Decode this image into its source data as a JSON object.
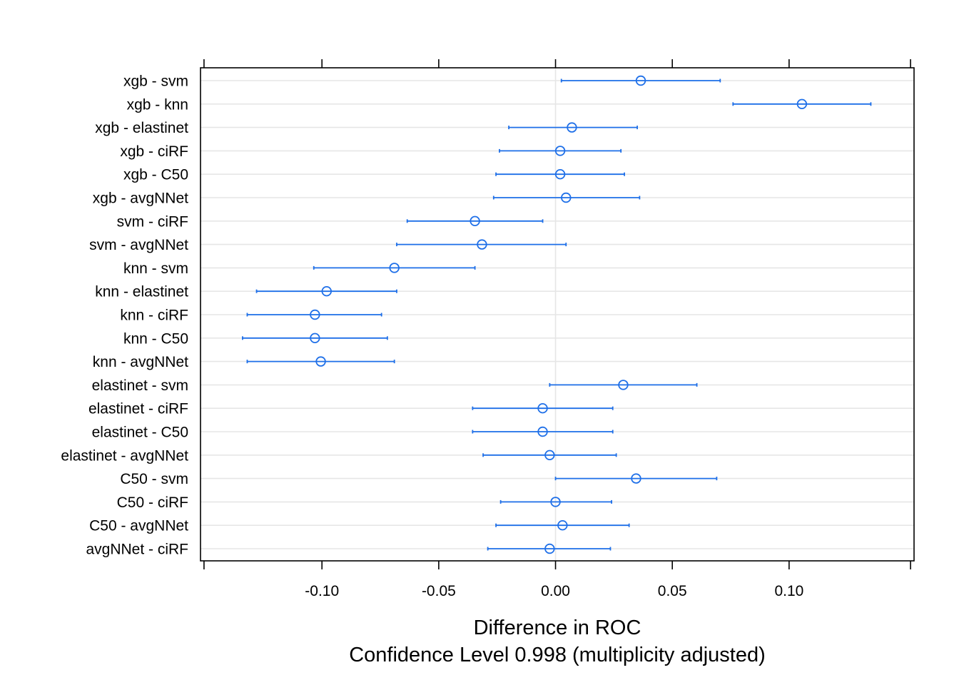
{
  "chart_data": {
    "type": "scatter",
    "xlabel": "Difference in ROC",
    "subtitle": "Confidence Level 0.998  (multiplicity adjusted)",
    "xlim": [
      -0.152,
      0.1535
    ],
    "xticks": [
      -0.1,
      -0.05,
      0.0,
      0.05,
      0.1
    ],
    "xtick_labels": [
      "-0.10",
      "-0.05",
      "0.00",
      "0.05",
      "0.10"
    ],
    "reference_line": 0.0,
    "grid": true,
    "color": "#1e6fe8",
    "points": [
      {
        "label": "xgb - svm",
        "estimate": 0.0365,
        "lower": 0.0025,
        "upper": 0.0705
      },
      {
        "label": "xgb - knn",
        "estimate": 0.1055,
        "upper": 0.135,
        "lower": 0.076
      },
      {
        "label": "xgb - elastinet",
        "estimate": 0.007,
        "lower": -0.02,
        "upper": 0.035
      },
      {
        "label": "xgb - ciRF",
        "estimate": 0.002,
        "lower": -0.024,
        "upper": 0.028
      },
      {
        "label": "xgb - C50",
        "estimate": 0.002,
        "lower": -0.0255,
        "upper": 0.0295
      },
      {
        "label": "xgb - avgNNet",
        "estimate": 0.0045,
        "lower": -0.0265,
        "upper": 0.036
      },
      {
        "label": "svm - ciRF",
        "estimate": -0.0345,
        "lower": -0.0635,
        "upper": -0.0055
      },
      {
        "label": "svm - avgNNet",
        "estimate": -0.0315,
        "lower": -0.068,
        "upper": 0.0045
      },
      {
        "label": "knn - svm",
        "estimate": -0.069,
        "lower": -0.1035,
        "upper": -0.0345
      },
      {
        "label": "knn - elastinet",
        "estimate": -0.098,
        "lower": -0.128,
        "upper": -0.068
      },
      {
        "label": "knn - ciRF",
        "estimate": -0.103,
        "lower": -0.132,
        "upper": -0.0745
      },
      {
        "label": "knn - C50",
        "estimate": -0.103,
        "lower": -0.134,
        "upper": -0.072
      },
      {
        "label": "knn - avgNNet",
        "estimate": -0.1005,
        "lower": -0.132,
        "upper": -0.069
      },
      {
        "label": "elastinet - svm",
        "estimate": 0.029,
        "lower": -0.0025,
        "upper": 0.0605
      },
      {
        "label": "elastinet - ciRF",
        "estimate": -0.0055,
        "lower": -0.0355,
        "upper": 0.0245
      },
      {
        "label": "elastinet - C50",
        "estimate": -0.0055,
        "lower": -0.0355,
        "upper": 0.0245
      },
      {
        "label": "elastinet - avgNNet",
        "estimate": -0.0025,
        "lower": -0.031,
        "upper": 0.026
      },
      {
        "label": "C50 - svm",
        "estimate": 0.0345,
        "lower": 0.0,
        "upper": 0.069
      },
      {
        "label": "C50 - ciRF",
        "estimate": 0.0,
        "lower": -0.0235,
        "upper": 0.024
      },
      {
        "label": "C50 - avgNNet",
        "estimate": 0.003,
        "lower": -0.0255,
        "upper": 0.0315
      },
      {
        "label": "avgNNet - ciRF",
        "estimate": -0.0025,
        "lower": -0.029,
        "upper": 0.0235
      }
    ]
  }
}
